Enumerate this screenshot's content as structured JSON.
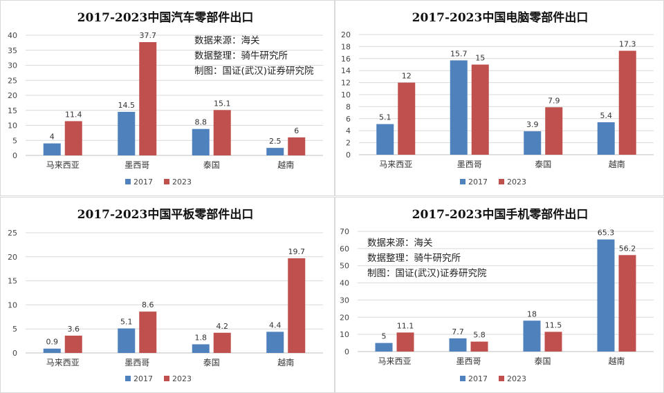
{
  "legend": [
    "2017",
    "2023"
  ],
  "colors": {
    "2017": "#4f81bd",
    "2023": "#c0504d",
    "grid": "#d9d9d9",
    "axis": "#bfbfbf"
  },
  "source_note": [
    "数据来源：海关",
    "数据整理：骑牛研究所",
    "制图：国证(武汉)证券研究院"
  ],
  "chart_data": [
    {
      "type": "bar",
      "title": "2017-2023中国汽车零部件出口",
      "categories": [
        "马来西亚",
        "墨西哥",
        "泰国",
        "越南"
      ],
      "series": [
        {
          "name": "2017",
          "values": [
            4,
            14.5,
            8.8,
            2.5
          ]
        },
        {
          "name": "2023",
          "values": [
            11.4,
            37.7,
            15.1,
            6
          ]
        }
      ],
      "ylim": [
        0,
        40
      ],
      "yticks": [
        0,
        5,
        10,
        15,
        20,
        25,
        30,
        35,
        40
      ],
      "grid": true,
      "legend_position": "bottom",
      "has_note": true
    },
    {
      "type": "bar",
      "title": "2017-2023中国电脑零部件出口",
      "categories": [
        "马来西亚",
        "墨西哥",
        "泰国",
        "越南"
      ],
      "series": [
        {
          "name": "2017",
          "values": [
            5.1,
            15.7,
            3.9,
            5.4
          ]
        },
        {
          "name": "2023",
          "values": [
            12,
            15,
            7.9,
            17.3
          ]
        }
      ],
      "ylim": [
        0,
        20
      ],
      "yticks": [
        0,
        2,
        4,
        6,
        8,
        10,
        12,
        14,
        16,
        18,
        20
      ],
      "grid": true,
      "legend_position": "bottom",
      "has_note": false
    },
    {
      "type": "bar",
      "title": "2017-2023中国平板零部件出口",
      "categories": [
        "马来西亚",
        "墨西哥",
        "泰国",
        "越南"
      ],
      "series": [
        {
          "name": "2017",
          "values": [
            0.9,
            5.1,
            1.8,
            4.4
          ]
        },
        {
          "name": "2023",
          "values": [
            3.6,
            8.6,
            4.2,
            19.7
          ]
        }
      ],
      "ylim": [
        0,
        25
      ],
      "yticks": [
        0,
        5,
        10,
        15,
        20,
        25
      ],
      "grid": true,
      "legend_position": "bottom",
      "has_note": false
    },
    {
      "type": "bar",
      "title": "2017-2023中国手机零部件出口",
      "categories": [
        "马来西亚",
        "墨西哥",
        "泰国",
        "越南"
      ],
      "series": [
        {
          "name": "2017",
          "values": [
            5,
            7.7,
            18,
            65.3
          ]
        },
        {
          "name": "2023",
          "values": [
            11.1,
            5.8,
            11.5,
            56.2
          ]
        }
      ],
      "ylim": [
        0,
        70
      ],
      "yticks": [
        0,
        10,
        20,
        30,
        40,
        50,
        60,
        70
      ],
      "grid": true,
      "legend_position": "bottom",
      "has_note": true
    }
  ]
}
